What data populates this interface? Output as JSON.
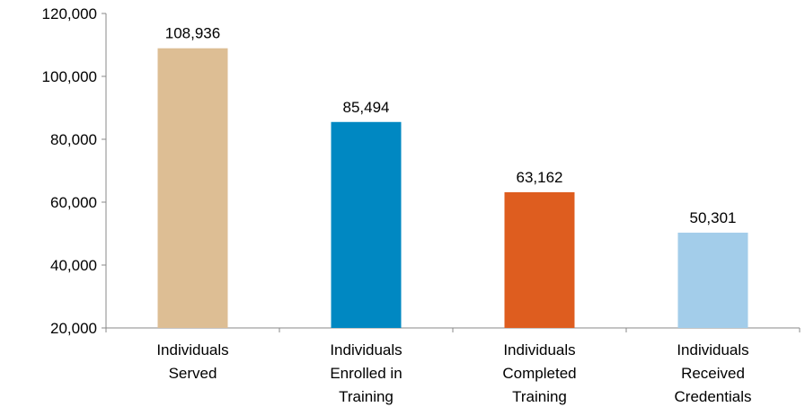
{
  "chart_data": {
    "type": "bar",
    "title": "",
    "xlabel": "",
    "ylabel": "",
    "categories": [
      [
        "Individuals",
        "Served"
      ],
      [
        "Individuals",
        "Enrolled in",
        "Training"
      ],
      [
        "Individuals",
        "Completed",
        "Training"
      ],
      [
        "Individuals",
        "Received",
        "Credentials"
      ]
    ],
    "values": [
      108936,
      85494,
      63162,
      50301
    ],
    "value_labels": [
      "108,936",
      "85,494",
      "63,162",
      "50,301"
    ],
    "bar_colors": [
      "#DDBE94",
      "#0088C2",
      "#DE5D1F",
      "#A3CDEA"
    ],
    "ylim": [
      20000,
      120000
    ],
    "yticks": [
      20000,
      40000,
      60000,
      80000,
      100000,
      120000
    ],
    "ytick_labels": [
      "20,000",
      "40,000",
      "60,000",
      "80,000",
      "100,000",
      "120,000"
    ],
    "grid": false,
    "legend": "none"
  }
}
